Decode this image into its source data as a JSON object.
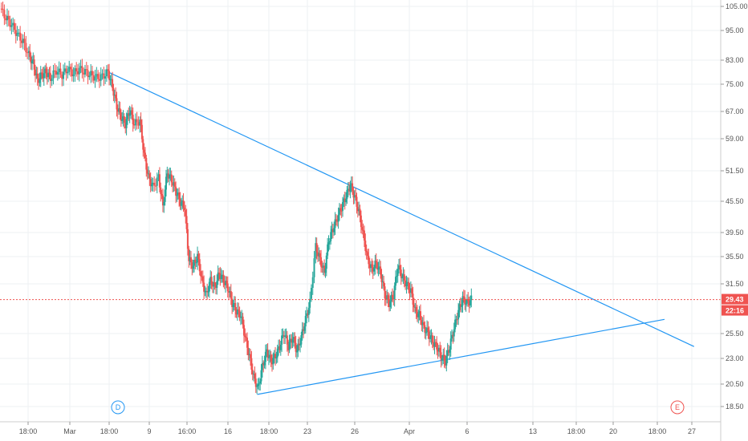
{
  "chart_data": {
    "type": "candlestick",
    "y_scale": "log",
    "y_ticks": [
      "105.00",
      "95.00",
      "83.00",
      "75.00",
      "67.00",
      "59.00",
      "51.50",
      "45.50",
      "39.50",
      "35.50",
      "31.50",
      "25.50",
      "23.00",
      "20.50",
      "18.50"
    ],
    "x_ticks": [
      "18:00",
      "Mar",
      "18:00",
      "9",
      "16:00",
      "16",
      "18:00",
      "23",
      "26",
      "Apr",
      "6",
      "13",
      "18:00",
      "20",
      "18:00",
      "27"
    ],
    "last_price": "29.43",
    "countdown": "22:16",
    "event_markers": [
      {
        "label": "D",
        "x_tick_ref": "near 16 Mar region (before 9)"
      },
      {
        "label": "E",
        "x_tick_ref": "near 27"
      }
    ],
    "trendlines": [
      {
        "name": "resistance",
        "from": {
          "t": 0.15,
          "price": 79.0
        },
        "to": {
          "t": 0.963,
          "price": 24.0
        }
      },
      {
        "name": "support",
        "from": {
          "t": 0.357,
          "price": 19.5
        },
        "to": {
          "t": 0.922,
          "price": 27.0
        }
      }
    ],
    "series": [
      {
        "t": 0.0,
        "price": 104.0
      },
      {
        "t": 0.008,
        "price": 100.0
      },
      {
        "t": 0.016,
        "price": 97.0
      },
      {
        "t": 0.024,
        "price": 93.0
      },
      {
        "t": 0.032,
        "price": 90.0
      },
      {
        "t": 0.04,
        "price": 85.0
      },
      {
        "t": 0.046,
        "price": 82.0
      },
      {
        "t": 0.052,
        "price": 76.0
      },
      {
        "t": 0.058,
        "price": 78.0
      },
      {
        "t": 0.064,
        "price": 79.0
      },
      {
        "t": 0.07,
        "price": 77.0
      },
      {
        "t": 0.078,
        "price": 79.5
      },
      {
        "t": 0.086,
        "price": 78.0
      },
      {
        "t": 0.094,
        "price": 80.0
      },
      {
        "t": 0.102,
        "price": 78.5
      },
      {
        "t": 0.11,
        "price": 80.0
      },
      {
        "t": 0.118,
        "price": 79.0
      },
      {
        "t": 0.126,
        "price": 78.0
      },
      {
        "t": 0.134,
        "price": 77.0
      },
      {
        "t": 0.142,
        "price": 77.5
      },
      {
        "t": 0.15,
        "price": 79.0
      },
      {
        "t": 0.156,
        "price": 74.0
      },
      {
        "t": 0.162,
        "price": 68.0
      },
      {
        "t": 0.168,
        "price": 65.0
      },
      {
        "t": 0.174,
        "price": 63.0
      },
      {
        "t": 0.18,
        "price": 67.0
      },
      {
        "t": 0.186,
        "price": 63.0
      },
      {
        "t": 0.194,
        "price": 64.0
      },
      {
        "t": 0.2,
        "price": 55.0
      },
      {
        "t": 0.206,
        "price": 50.0
      },
      {
        "t": 0.212,
        "price": 48.0
      },
      {
        "t": 0.22,
        "price": 50.0
      },
      {
        "t": 0.226,
        "price": 44.0
      },
      {
        "t": 0.232,
        "price": 51.0
      },
      {
        "t": 0.238,
        "price": 49.5
      },
      {
        "t": 0.244,
        "price": 47.0
      },
      {
        "t": 0.25,
        "price": 45.0
      },
      {
        "t": 0.256,
        "price": 44.0
      },
      {
        "t": 0.262,
        "price": 35.0
      },
      {
        "t": 0.268,
        "price": 34.0
      },
      {
        "t": 0.274,
        "price": 35.5
      },
      {
        "t": 0.28,
        "price": 32.0
      },
      {
        "t": 0.286,
        "price": 30.0
      },
      {
        "t": 0.292,
        "price": 32.0
      },
      {
        "t": 0.298,
        "price": 31.0
      },
      {
        "t": 0.304,
        "price": 33.0
      },
      {
        "t": 0.31,
        "price": 32.0
      },
      {
        "t": 0.316,
        "price": 31.0
      },
      {
        "t": 0.322,
        "price": 29.0
      },
      {
        "t": 0.328,
        "price": 28.0
      },
      {
        "t": 0.334,
        "price": 27.5
      },
      {
        "t": 0.34,
        "price": 25.0
      },
      {
        "t": 0.346,
        "price": 23.0
      },
      {
        "t": 0.352,
        "price": 21.0
      },
      {
        "t": 0.358,
        "price": 20.0
      },
      {
        "t": 0.364,
        "price": 22.0
      },
      {
        "t": 0.37,
        "price": 23.5
      },
      {
        "t": 0.376,
        "price": 22.5
      },
      {
        "t": 0.382,
        "price": 23.0
      },
      {
        "t": 0.388,
        "price": 24.0
      },
      {
        "t": 0.394,
        "price": 25.5
      },
      {
        "t": 0.4,
        "price": 24.0
      },
      {
        "t": 0.406,
        "price": 25.0
      },
      {
        "t": 0.412,
        "price": 23.5
      },
      {
        "t": 0.418,
        "price": 25.0
      },
      {
        "t": 0.424,
        "price": 27.0
      },
      {
        "t": 0.43,
        "price": 29.0
      },
      {
        "t": 0.438,
        "price": 37.0
      },
      {
        "t": 0.444,
        "price": 35.0
      },
      {
        "t": 0.45,
        "price": 33.0
      },
      {
        "t": 0.456,
        "price": 38.0
      },
      {
        "t": 0.462,
        "price": 40.0
      },
      {
        "t": 0.468,
        "price": 42.0
      },
      {
        "t": 0.474,
        "price": 44.0
      },
      {
        "t": 0.48,
        "price": 46.0
      },
      {
        "t": 0.486,
        "price": 48.5
      },
      {
        "t": 0.492,
        "price": 46.0
      },
      {
        "t": 0.498,
        "price": 43.0
      },
      {
        "t": 0.504,
        "price": 39.0
      },
      {
        "t": 0.51,
        "price": 35.0
      },
      {
        "t": 0.516,
        "price": 33.5
      },
      {
        "t": 0.522,
        "price": 34.5
      },
      {
        "t": 0.528,
        "price": 33.0
      },
      {
        "t": 0.534,
        "price": 30.0
      },
      {
        "t": 0.54,
        "price": 29.0
      },
      {
        "t": 0.546,
        "price": 30.0
      },
      {
        "t": 0.552,
        "price": 34.0
      },
      {
        "t": 0.558,
        "price": 32.5
      },
      {
        "t": 0.564,
        "price": 31.5
      },
      {
        "t": 0.57,
        "price": 30.5
      },
      {
        "t": 0.576,
        "price": 28.0
      },
      {
        "t": 0.582,
        "price": 27.5
      },
      {
        "t": 0.588,
        "price": 26.0
      },
      {
        "t": 0.594,
        "price": 25.5
      },
      {
        "t": 0.6,
        "price": 24.5
      },
      {
        "t": 0.606,
        "price": 24.0
      },
      {
        "t": 0.612,
        "price": 23.0
      },
      {
        "t": 0.618,
        "price": 22.5
      },
      {
        "t": 0.624,
        "price": 24.0
      },
      {
        "t": 0.63,
        "price": 26.0
      },
      {
        "t": 0.636,
        "price": 28.0
      },
      {
        "t": 0.642,
        "price": 29.5
      },
      {
        "t": 0.648,
        "price": 29.0
      },
      {
        "t": 0.654,
        "price": 29.43
      }
    ],
    "colors": {
      "up": "#26a69a",
      "down": "#ef5350",
      "trendline": "#2196f3",
      "last_price_tag": "#ef5350",
      "countdown_tag": "#ef5350",
      "grid": "#eef0f3",
      "axis_text": "#555555",
      "marker_d": "#2196f3",
      "marker_e": "#ef5350"
    }
  }
}
